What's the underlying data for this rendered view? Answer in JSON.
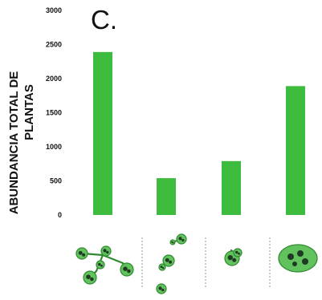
{
  "chart_data": {
    "type": "bar",
    "panel_label": "C.",
    "ylabel": "ABUNDANCIA TOTAL DE PLANTAS",
    "ylim": [
      0,
      3000
    ],
    "yticks": [
      0,
      500,
      1000,
      1500,
      2000,
      2500,
      3000
    ],
    "categories": [
      "",
      "",
      "",
      ""
    ],
    "category_icons": [
      "connected-patches-icon",
      "scattered-patches-icon",
      "single-cluster-icon",
      "compact-patch-icon"
    ],
    "values": [
      2390,
      540,
      790,
      1890
    ],
    "bar_color": "#3dbb3d",
    "grid": false,
    "legend": "none"
  }
}
